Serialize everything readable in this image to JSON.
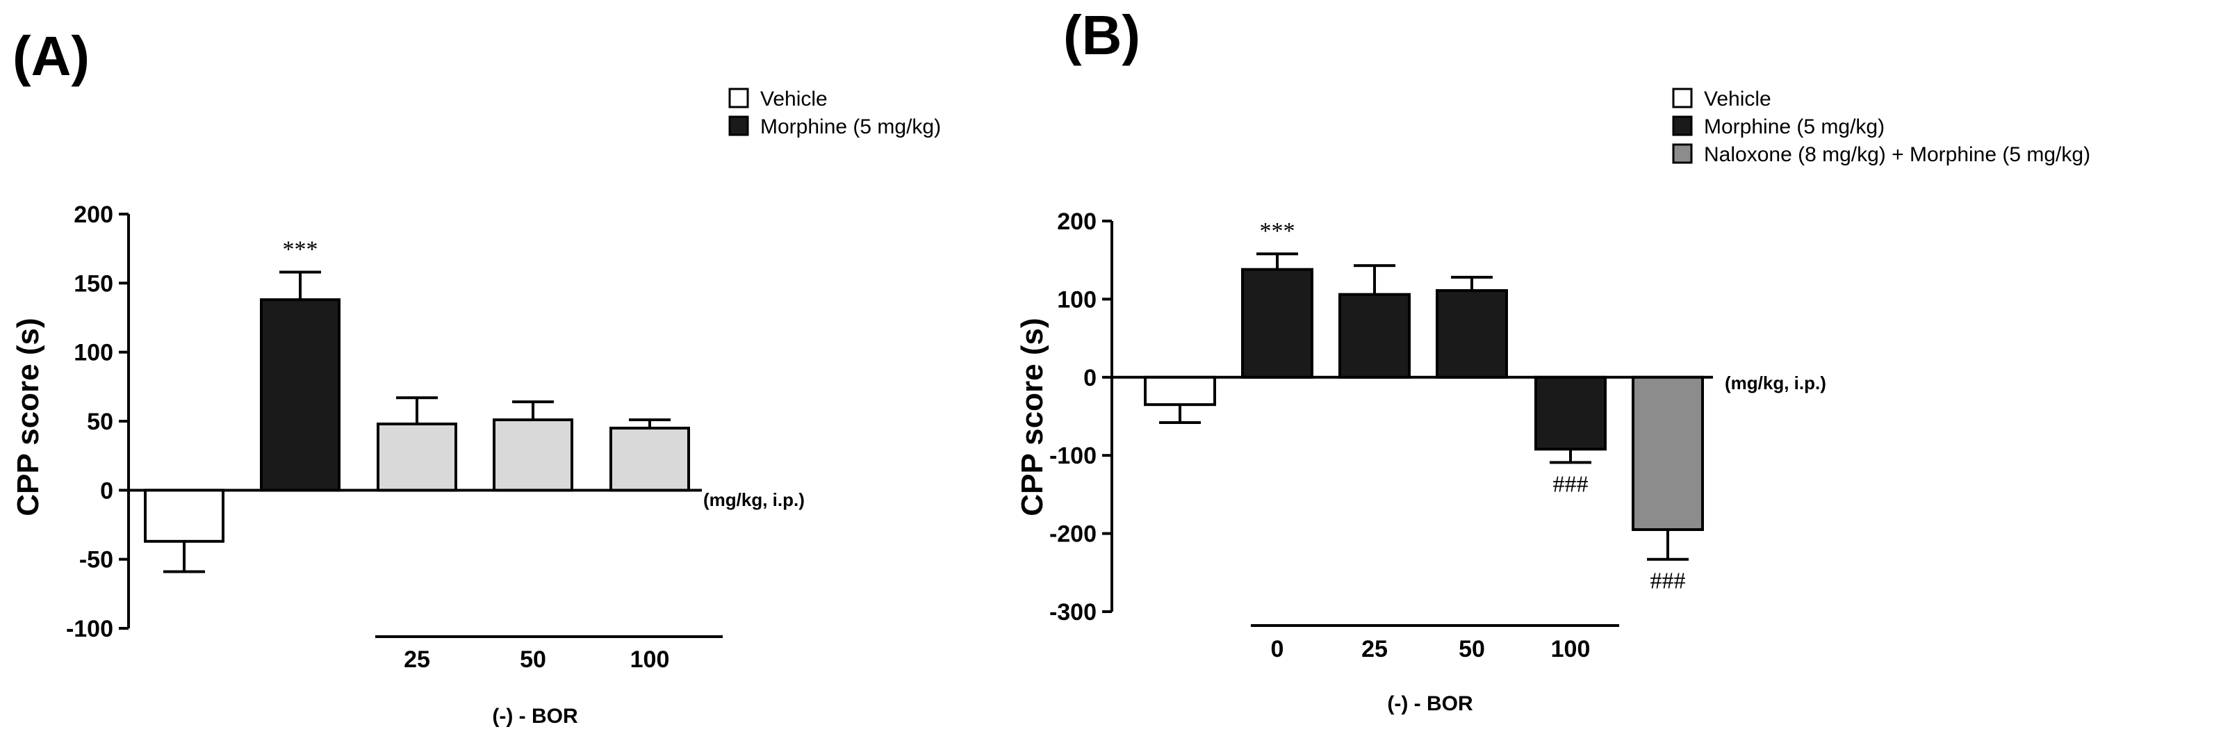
{
  "chart_data": [
    {
      "type": "bar",
      "panel_label": "(A)",
      "ylabel": "CPP score (s)",
      "ylim": [
        -100,
        200
      ],
      "yticks": [
        "200",
        "150",
        "100",
        "50",
        "0",
        "-50",
        "-100"
      ],
      "ytick_values": [
        200,
        150,
        100,
        50,
        0,
        -50,
        -100
      ],
      "unit_label": "(mg/kg, i.p.)",
      "group_label": "(-) - BOR",
      "categories": [
        "",
        "",
        "25",
        "50",
        "100"
      ],
      "bars": [
        {
          "category": "Vehicle",
          "value": -37,
          "error": 22,
          "series": "Vehicle",
          "annotation": ""
        },
        {
          "category": "Morphine",
          "value": 138,
          "error": 20,
          "series": "Morphine (5 mg/kg)",
          "annotation": "***"
        },
        {
          "category": "25",
          "value": 48,
          "error": 19,
          "series": "BOR",
          "annotation": ""
        },
        {
          "category": "50",
          "value": 51,
          "error": 13,
          "series": "BOR",
          "annotation": ""
        },
        {
          "category": "100",
          "value": 45,
          "error": 6,
          "series": "BOR",
          "annotation": ""
        }
      ],
      "legend": [
        {
          "label": "Vehicle",
          "color": "#ffffff"
        },
        {
          "label": "Morphine (5 mg/kg)",
          "color": "#1a1a1a"
        }
      ]
    },
    {
      "type": "bar",
      "panel_label": "(B)",
      "ylabel": "CPP score (s)",
      "ylim": [
        -300,
        200
      ],
      "yticks": [
        "200",
        "100",
        "0",
        "-100",
        "-200",
        "-300"
      ],
      "ytick_values": [
        200,
        100,
        0,
        -100,
        -200,
        -300
      ],
      "unit_label": "(mg/kg, i.p.)",
      "group_label": "(-) - BOR",
      "categories": [
        "",
        "0",
        "25",
        "50",
        "100",
        ""
      ],
      "bars": [
        {
          "category": "Vehicle",
          "value": -35,
          "error": 23,
          "series": "Vehicle",
          "annotation": ""
        },
        {
          "category": "0",
          "value": 138,
          "error": 20,
          "series": "Morphine (5 mg/kg)",
          "annotation": "***"
        },
        {
          "category": "25",
          "value": 106,
          "error": 37,
          "series": "Morphine (5 mg/kg)",
          "annotation": ""
        },
        {
          "category": "50",
          "value": 111,
          "error": 17,
          "series": "Morphine (5 mg/kg)",
          "annotation": ""
        },
        {
          "category": "100",
          "value": -92,
          "error": 17,
          "series": "Morphine (5 mg/kg)",
          "annotation": "###"
        },
        {
          "category": "Naloxone",
          "value": -195,
          "error": 38,
          "series": "Naloxone (8 mg/kg) + Morphine (5 mg/kg)",
          "annotation": "###"
        }
      ],
      "legend": [
        {
          "label": "Vehicle",
          "color": "#ffffff"
        },
        {
          "label": "Morphine (5 mg/kg)",
          "color": "#1a1a1a"
        },
        {
          "label": "Naloxone (8 mg/kg) + Morphine (5 mg/kg)",
          "color": "#8c8c8c"
        }
      ]
    }
  ],
  "colors": {
    "vehicle": "#ffffff",
    "morphine": "#1a1a1a",
    "bor": "#d9d9d9",
    "naloxone": "#8c8c8c",
    "axis": "#000000"
  }
}
